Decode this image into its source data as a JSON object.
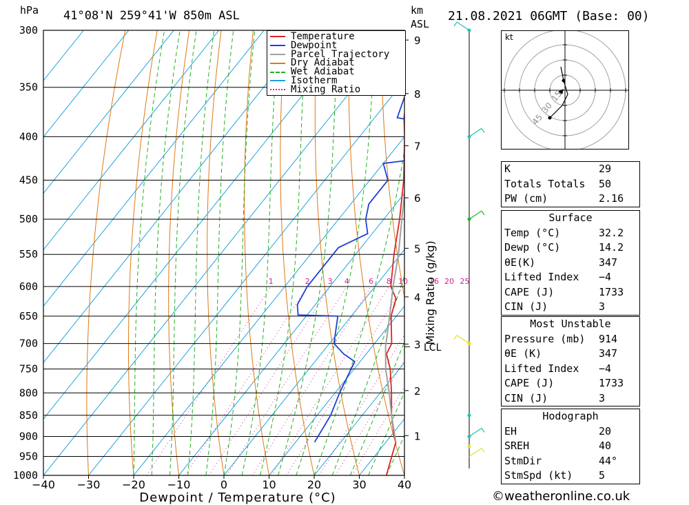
{
  "header": {
    "pressure_unit": "hPa",
    "location": "41°08'N  259°41'W  850m  ASL",
    "km_label": "km",
    "asl_label": "ASL",
    "datetime": "21.08.2021  06GMT  (Base: 00)"
  },
  "footer": {
    "credit": "©weatheronline.co.uk"
  },
  "chart_data": {
    "type": "line",
    "title": "",
    "xlabel": "Dewpoint / Temperature (°C)",
    "ylabel": "hPa",
    "right_label": "Mixing Ratio (g/kg)",
    "xlim": [
      -40,
      40
    ],
    "ylim": [
      1000,
      300
    ],
    "x_ticks": [
      "−40",
      "−30",
      "−20",
      "−10",
      "0",
      "10",
      "20",
      "30",
      "40"
    ],
    "pressure_levels": [
      300,
      350,
      400,
      450,
      500,
      550,
      600,
      650,
      700,
      750,
      800,
      850,
      900,
      950,
      1000
    ],
    "km_ticks": [
      {
        "km": "1",
        "p": 898
      },
      {
        "km": "2",
        "p": 795
      },
      {
        "km": "3",
        "p": 701
      },
      {
        "km": "4",
        "p": 617
      },
      {
        "km": "5",
        "p": 541
      },
      {
        "km": "6",
        "p": 472
      },
      {
        "km": "7",
        "p": 410
      },
      {
        "km": "8",
        "p": 356
      },
      {
        "km": "9",
        "p": 308
      }
    ],
    "lcl": {
      "label": "LCL",
      "p": 706
    },
    "mixing_ratio_labels": [
      "1",
      "2",
      "3",
      "4",
      "6",
      "8",
      "10",
      "16",
      "20",
      "25"
    ],
    "legend": [
      {
        "name": "Temperature",
        "color": "#e02020",
        "style": "solid"
      },
      {
        "name": "Dewpoint",
        "color": "#1f3fd6",
        "style": "solid"
      },
      {
        "name": "Parcel Trajectory",
        "color": "#a0a0a0",
        "style": "solid"
      },
      {
        "name": "Dry Adiabat",
        "color": "#e07810",
        "style": "solid"
      },
      {
        "name": "Wet Adiabat",
        "color": "#20b020",
        "style": "dashed"
      },
      {
        "name": "Isotherm",
        "color": "#1aa0e0",
        "style": "solid"
      },
      {
        "name": "Mixing Ratio",
        "color": "#d0209a",
        "style": "dotted"
      }
    ],
    "series": [
      {
        "name": "Temperature",
        "color": "#e02020",
        "points": [
          [
            1000,
            36
          ],
          [
            914,
            32.2
          ],
          [
            900,
            30.8
          ],
          [
            850,
            26.5
          ],
          [
            800,
            22.5
          ],
          [
            750,
            18
          ],
          [
            720,
            14.5
          ],
          [
            700,
            13.8
          ],
          [
            650,
            8.8
          ],
          [
            620,
            6.8
          ],
          [
            600,
            3.5
          ],
          [
            550,
            -1.5
          ],
          [
            500,
            -6.5
          ],
          [
            450,
            -12.5
          ],
          [
            400,
            -20
          ],
          [
            380,
            -23.5
          ],
          [
            350,
            -28
          ],
          [
            300,
            -38
          ]
        ]
      },
      {
        "name": "Dewpoint",
        "color": "#1f3fd6",
        "points": [
          [
            914,
            14.2
          ],
          [
            850,
            13
          ],
          [
            800,
            11
          ],
          [
            735,
            8.8
          ],
          [
            720,
            5
          ],
          [
            700,
            1
          ],
          [
            650,
            -3
          ],
          [
            648,
            -12
          ],
          [
            630,
            -14
          ],
          [
            600,
            -15
          ],
          [
            560,
            -15
          ],
          [
            540,
            -15
          ],
          [
            520,
            -11
          ],
          [
            500,
            -14
          ],
          [
            480,
            -16
          ],
          [
            450,
            -16
          ],
          [
            430,
            -20
          ],
          [
            425,
            -13
          ],
          [
            405,
            -14
          ],
          [
            390,
            -12
          ],
          [
            380,
            -25
          ],
          [
            360,
            -27
          ],
          [
            355,
            -26
          ],
          [
            330,
            -40
          ],
          [
            310,
            -52
          ],
          [
            300,
            -42
          ],
          [
            294,
            -44
          ]
        ]
      },
      {
        "name": "Parcel Trajectory",
        "color": "#a0a0a0",
        "points": [
          [
            914,
            32.2
          ],
          [
            850,
            26.5
          ],
          [
            800,
            22
          ],
          [
            750,
            17
          ],
          [
            706,
            13
          ],
          [
            650,
            8.5
          ],
          [
            600,
            4
          ],
          [
            550,
            -0.5
          ],
          [
            500,
            -6
          ],
          [
            450,
            -12
          ],
          [
            400,
            -18.5
          ],
          [
            360,
            -24.5
          ]
        ]
      }
    ]
  },
  "hodograph": {
    "unit": "kt",
    "ring_labels": [
      "15",
      "30",
      "45"
    ]
  },
  "indices": {
    "k_label": "K",
    "k_value": "29",
    "tt_label": "Totals Totals",
    "tt_value": "50",
    "pw_label": "PW (cm)",
    "pw_value": "2.16"
  },
  "surface": {
    "title": "Surface",
    "rows": [
      {
        "label": "Temp (°C)",
        "value": "32.2"
      },
      {
        "label": "Dewp (°C)",
        "value": "14.2"
      },
      {
        "label": "θE(K)",
        "value": "347"
      },
      {
        "label": "Lifted Index",
        "value": "−4"
      },
      {
        "label": "CAPE (J)",
        "value": "1733"
      },
      {
        "label": "CIN (J)",
        "value": "3"
      }
    ]
  },
  "most_unstable": {
    "title": "Most Unstable",
    "rows": [
      {
        "label": "Pressure (mb)",
        "value": "914"
      },
      {
        "label": "θE (K)",
        "value": "347"
      },
      {
        "label": "Lifted Index",
        "value": "−4"
      },
      {
        "label": "CAPE (J)",
        "value": "1733"
      },
      {
        "label": "CIN (J)",
        "value": "3"
      }
    ]
  },
  "hodograph_table": {
    "title": "Hodograph",
    "rows": [
      {
        "label": "EH",
        "value": "20"
      },
      {
        "label": "SREH",
        "value": "40"
      },
      {
        "label": "StmDir",
        "value": "44°"
      },
      {
        "label": "StmSpd (kt)",
        "value": "5"
      }
    ]
  },
  "colors": {
    "temperature": "#e02020",
    "dewpoint": "#1f3fd6",
    "parcel": "#a0a0a0",
    "dry_adiabat": "#e07810",
    "wet_adiabat": "#20b020",
    "isotherm": "#1aa0e0",
    "mixing_ratio": "#d0209a",
    "wind_barb": "#20c0b0"
  }
}
